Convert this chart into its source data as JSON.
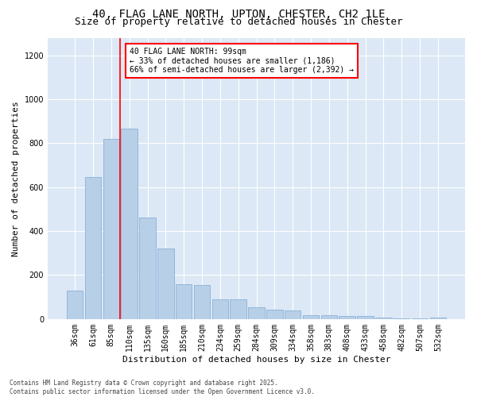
{
  "title": "40, FLAG LANE NORTH, UPTON, CHESTER, CH2 1LE",
  "subtitle": "Size of property relative to detached houses in Chester",
  "xlabel": "Distribution of detached houses by size in Chester",
  "ylabel": "Number of detached properties",
  "categories": [
    "36sqm",
    "61sqm",
    "85sqm",
    "110sqm",
    "135sqm",
    "160sqm",
    "185sqm",
    "210sqm",
    "234sqm",
    "259sqm",
    "284sqm",
    "309sqm",
    "334sqm",
    "358sqm",
    "383sqm",
    "408sqm",
    "433sqm",
    "458sqm",
    "482sqm",
    "507sqm",
    "532sqm"
  ],
  "values": [
    130,
    645,
    820,
    868,
    460,
    320,
    160,
    155,
    90,
    90,
    55,
    42,
    40,
    18,
    18,
    13,
    13,
    5,
    3,
    2,
    8
  ],
  "bar_color": "#b8cfe8",
  "bar_edge_color": "#7aaad4",
  "vline_x_index": 2.5,
  "vline_color": "red",
  "annotation_text": "40 FLAG LANE NORTH: 99sqm\n← 33% of detached houses are smaller (1,186)\n66% of semi-detached houses are larger (2,392) →",
  "annotation_box_color": "white",
  "annotation_box_edge_color": "red",
  "ylim": [
    0,
    1280
  ],
  "yticks": [
    0,
    200,
    400,
    600,
    800,
    1000,
    1200
  ],
  "background_color": "#dce8f5",
  "footer_text": "Contains HM Land Registry data © Crown copyright and database right 2025.\nContains public sector information licensed under the Open Government Licence v3.0.",
  "title_fontsize": 10,
  "subtitle_fontsize": 9,
  "tick_fontsize": 7,
  "ylabel_fontsize": 8,
  "xlabel_fontsize": 8,
  "annotation_fontsize": 7,
  "footer_fontsize": 5.5
}
